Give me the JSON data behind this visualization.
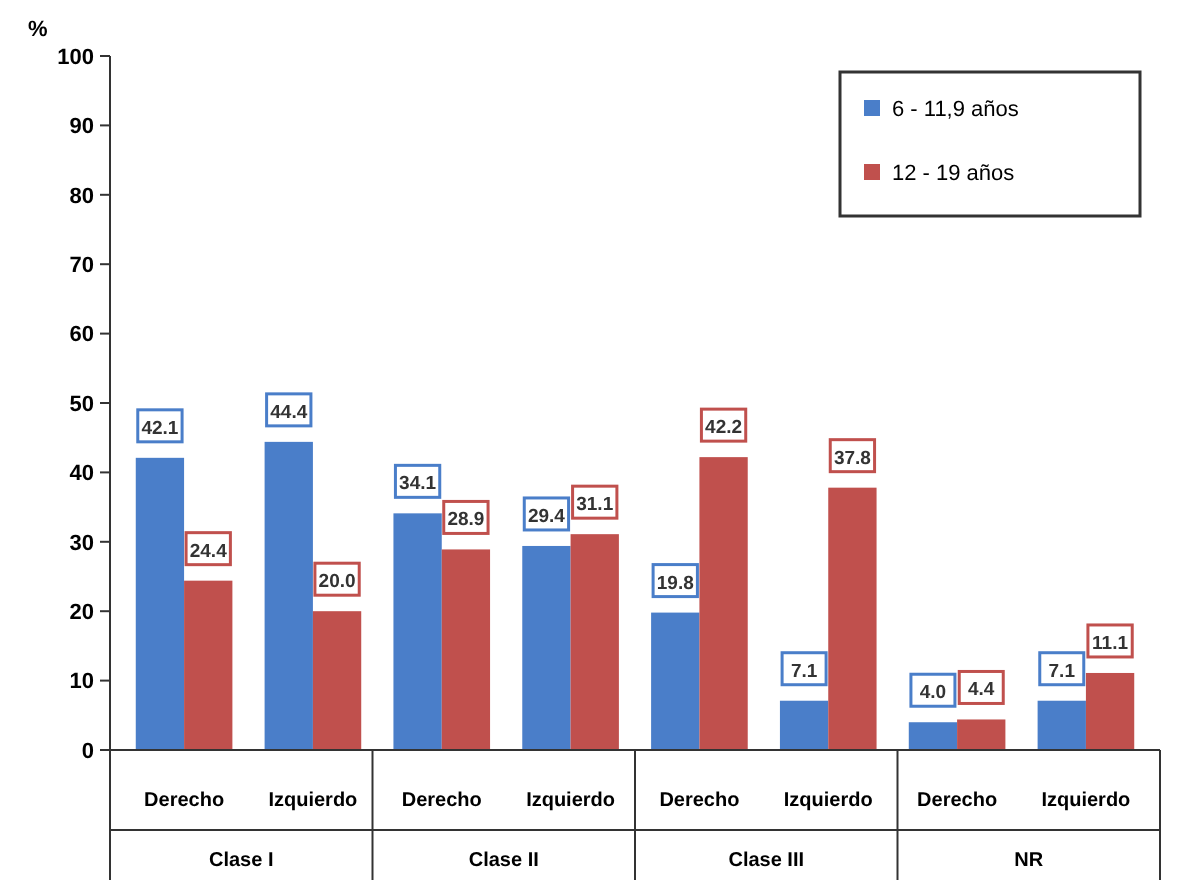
{
  "chart_data": {
    "type": "bar",
    "ylabel": "%",
    "categories": [
      "Derecho",
      "Izquierdo",
      "Derecho",
      "Izquierdo",
      "Derecho",
      "Izquierdo",
      "Derecho",
      "Izquierdo"
    ],
    "series": [
      {
        "name": "6 - 11,9 años",
        "color": "#4a7ec9",
        "values": [
          42.1,
          44.4,
          34.1,
          29.4,
          19.8,
          7.1,
          4.0,
          7.1
        ],
        "value_labels": [
          "42.1",
          "44.4",
          "34.1",
          "29.4",
          "19.8",
          "7.1",
          "4.0",
          "7.1"
        ]
      },
      {
        "name": "12 - 19 años",
        "color": "#c0504d",
        "values": [
          24.4,
          20.0,
          28.9,
          31.1,
          42.2,
          37.8,
          4.4,
          11.1
        ],
        "value_labels": [
          "24.4",
          "20.0",
          "28.9",
          "31.1",
          "42.2",
          "37.8",
          "4.4",
          "11.1"
        ]
      }
    ],
    "ylim": [
      0,
      100
    ],
    "yticks": [
      0,
      10,
      20,
      30,
      40,
      50,
      60,
      70,
      80,
      90,
      100
    ],
    "grid": false,
    "legend": "top right",
    "annotations": [
      "Clase I",
      "Clase II",
      "Clase III",
      "NR"
    ]
  }
}
